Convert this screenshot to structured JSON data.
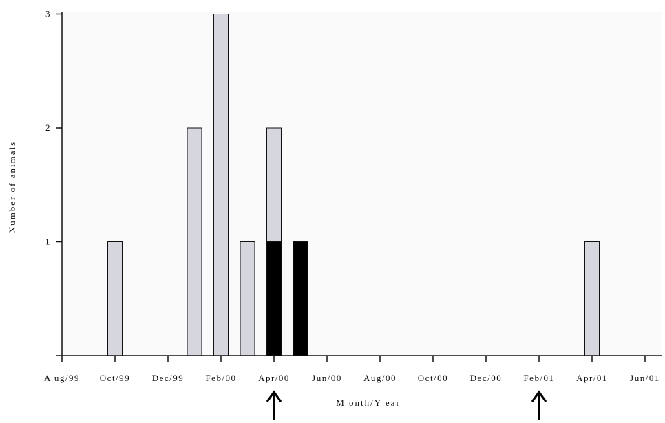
{
  "chart_data": {
    "type": "bar",
    "xlabel": "M onth/Y ear",
    "ylabel": "Number of animals",
    "ylim": [
      0,
      3
    ],
    "y_ticks": [
      "1",
      "2",
      "3"
    ],
    "x_tick_labels": [
      "A ug/99",
      "Oct/99",
      "Dec/99",
      "Feb/00",
      "Apr/00",
      "Jun/00",
      "Aug/00",
      "Oct/00",
      "Dec/00",
      "Feb/01",
      "Apr/01",
      "Jun/01"
    ],
    "stacked": true,
    "grid": false,
    "legend": "none",
    "colors": {
      "grey": "#d6d6de",
      "black": "#000000",
      "axis": "#111111"
    },
    "bars": [
      {
        "month": "Oct/99",
        "grey": 1,
        "black": 0
      },
      {
        "month": "Jan/00",
        "grey": 2,
        "black": 0
      },
      {
        "month": "Feb/00",
        "grey": 3,
        "black": 0
      },
      {
        "month": "Mar/00",
        "grey": 1,
        "black": 0
      },
      {
        "month": "Apr/00",
        "grey": 1,
        "black": 1
      },
      {
        "month": "May/00",
        "grey": 0,
        "black": 1
      },
      {
        "month": "Apr/01",
        "grey": 1,
        "black": 0
      }
    ],
    "annotations": [
      {
        "type": "arrow-up",
        "month": "Apr/00"
      },
      {
        "type": "arrow-up",
        "month": "Feb/01"
      }
    ]
  }
}
